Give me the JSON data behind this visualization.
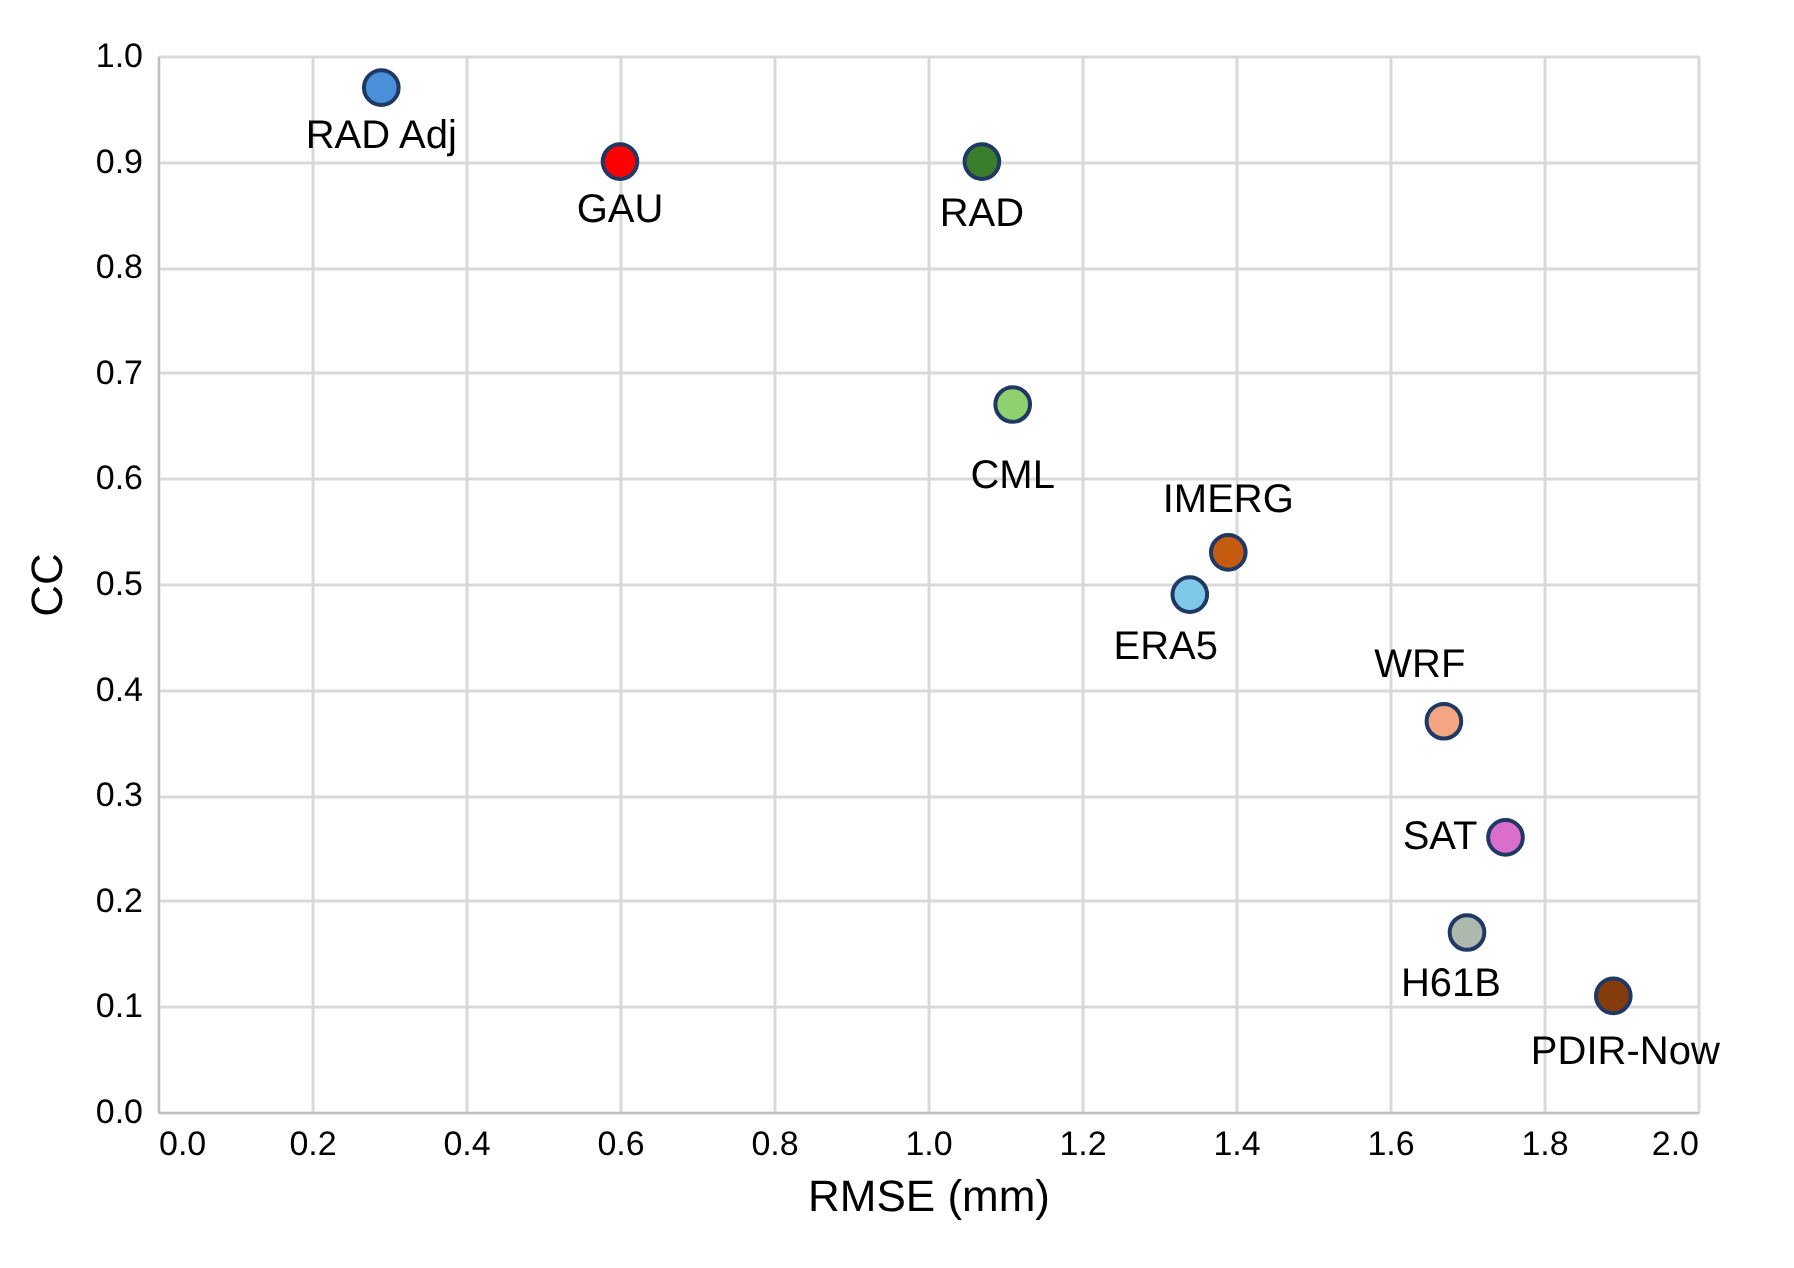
{
  "chart_data": {
    "type": "scatter",
    "xlabel": "RMSE (mm)",
    "ylabel": "CC",
    "xlim": [
      0,
      2
    ],
    "ylim": [
      0,
      1
    ],
    "xticks": [
      {
        "value": 0,
        "label": "0.0"
      },
      {
        "value": 0.2,
        "label": "0.2"
      },
      {
        "value": 0.4,
        "label": "0.4"
      },
      {
        "value": 0.6,
        "label": "0.6"
      },
      {
        "value": 0.8,
        "label": "0.8"
      },
      {
        "value": 1,
        "label": "1.0"
      },
      {
        "value": 1.2,
        "label": "1.2"
      },
      {
        "value": 1.4,
        "label": "1.4"
      },
      {
        "value": 1.6,
        "label": "1.6"
      },
      {
        "value": 1.8,
        "label": "1.8"
      },
      {
        "value": 2,
        "label": "2.0"
      }
    ],
    "yticks": [
      {
        "value": 0,
        "label": "0.0"
      },
      {
        "value": 0.1,
        "label": "0.1"
      },
      {
        "value": 0.2,
        "label": "0.2"
      },
      {
        "value": 0.3,
        "label": "0.3"
      },
      {
        "value": 0.4,
        "label": "0.4"
      },
      {
        "value": 0.5,
        "label": "0.5"
      },
      {
        "value": 0.6,
        "label": "0.6"
      },
      {
        "value": 0.7,
        "label": "0.7"
      },
      {
        "value": 0.8,
        "label": "0.8"
      },
      {
        "value": 0.9,
        "label": "0.9"
      },
      {
        "value": 1,
        "label": "1.0"
      }
    ],
    "grid": true,
    "marker": "circle",
    "series": [
      {
        "name": "RAD Adj",
        "color": "#4a90d9",
        "x": [
          0.29
        ],
        "values": [
          0.97
        ]
      },
      {
        "name": "GAU",
        "color": "#ff0000",
        "x": [
          0.6
        ],
        "values": [
          0.9
        ]
      },
      {
        "name": "RAD",
        "color": "#3a7d2c",
        "x": [
          1.07
        ],
        "values": [
          0.9
        ]
      },
      {
        "name": "CML",
        "color": "#8fd16f",
        "x": [
          1.11
        ],
        "values": [
          0.67
        ]
      },
      {
        "name": "IMERG",
        "color": "#c55a11",
        "x": [
          1.39
        ],
        "values": [
          0.53
        ]
      },
      {
        "name": "ERA5",
        "color": "#7ec8e8",
        "x": [
          1.34
        ],
        "values": [
          0.49
        ]
      },
      {
        "name": "WRF",
        "color": "#f4a582",
        "x": [
          1.67
        ],
        "values": [
          0.37
        ]
      },
      {
        "name": "SAT",
        "color": "#d96fcb",
        "x": [
          1.75
        ],
        "values": [
          0.26
        ]
      },
      {
        "name": "H61B",
        "color": "#adb9ad",
        "x": [
          1.7
        ],
        "values": [
          0.17
        ]
      },
      {
        "name": "PDIR-Now",
        "color": "#843c0c",
        "x": [
          1.89
        ],
        "values": [
          0.11
        ]
      }
    ]
  }
}
